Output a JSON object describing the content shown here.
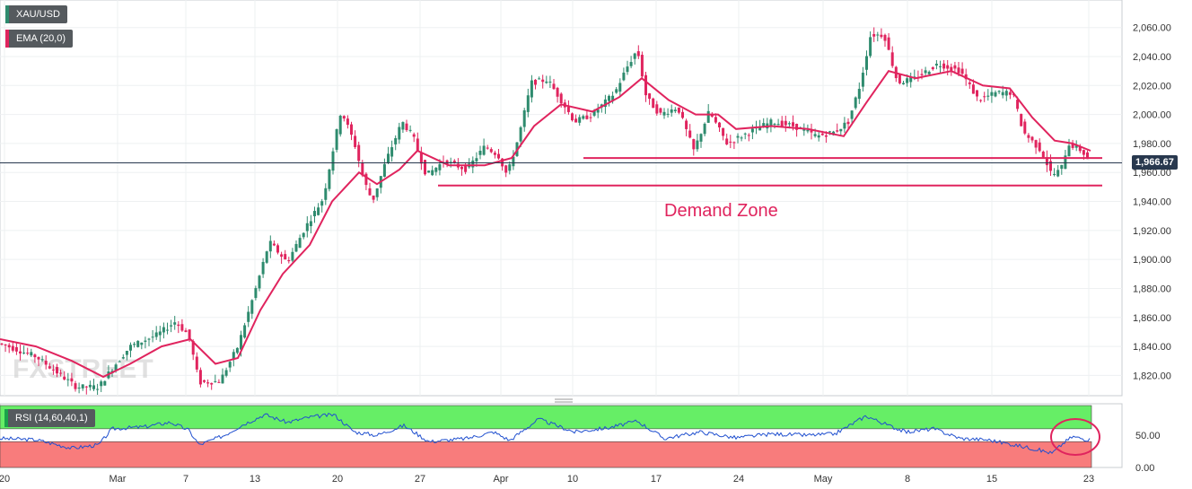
{
  "legend": {
    "symbol": "XAU/USD",
    "ema": "EMA (20,0)",
    "rsi": "RSI (14,60,40,1)"
  },
  "annotations": {
    "demand_zone": "Demand Zone",
    "current_price": "1,966.67"
  },
  "watermark": "FXSTREET",
  "colors": {
    "up_candle": "#2e8b6e",
    "down_candle": "#e0245e",
    "ema": "#e0245e",
    "zone_lines": "#e0245e",
    "rsi_line": "#1f4fcf",
    "rsi_overbought_fill": "#66ee66",
    "rsi_oversold_fill": "#f87c7c",
    "price_line": "#28384e"
  },
  "chart_data": [
    {
      "type": "candlestick",
      "title": "XAU/USD",
      "x_ticks": [
        "20",
        "Mar",
        "7",
        "13",
        "20",
        "27",
        "Apr",
        "10",
        "17",
        "24",
        "May",
        "8",
        "15",
        "23"
      ],
      "y_ticks": [
        "1,820.00",
        "1,840.00",
        "1,860.00",
        "1,880.00",
        "1,900.00",
        "1,920.00",
        "1,940.00",
        "1,960.00",
        "1,980.00",
        "2,000.00",
        "2,020.00",
        "2,040.00",
        "2,060.00"
      ],
      "ylim": [
        1806,
        2079
      ],
      "grid": true,
      "anchors": [
        {
          "x": 0,
          "y": 1842
        },
        {
          "x": 40,
          "y": 1833
        },
        {
          "x": 85,
          "y": 1812
        },
        {
          "x": 110,
          "y": 1812
        },
        {
          "x": 125,
          "y": 1825
        },
        {
          "x": 145,
          "y": 1840
        },
        {
          "x": 175,
          "y": 1848
        },
        {
          "x": 195,
          "y": 1857
        },
        {
          "x": 210,
          "y": 1848
        },
        {
          "x": 222,
          "y": 1815
        },
        {
          "x": 245,
          "y": 1816
        },
        {
          "x": 265,
          "y": 1840
        },
        {
          "x": 285,
          "y": 1880
        },
        {
          "x": 300,
          "y": 1912
        },
        {
          "x": 320,
          "y": 1898
        },
        {
          "x": 340,
          "y": 1922
        },
        {
          "x": 360,
          "y": 1942
        },
        {
          "x": 380,
          "y": 2003
        },
        {
          "x": 395,
          "y": 1980
        },
        {
          "x": 405,
          "y": 1955
        },
        {
          "x": 415,
          "y": 1940
        },
        {
          "x": 430,
          "y": 1968
        },
        {
          "x": 448,
          "y": 1995
        },
        {
          "x": 460,
          "y": 1985
        },
        {
          "x": 475,
          "y": 1958
        },
        {
          "x": 495,
          "y": 1968
        },
        {
          "x": 520,
          "y": 1962
        },
        {
          "x": 540,
          "y": 1978
        },
        {
          "x": 555,
          "y": 1972
        },
        {
          "x": 565,
          "y": 1958
        },
        {
          "x": 578,
          "y": 1985
        },
        {
          "x": 592,
          "y": 2022
        },
        {
          "x": 610,
          "y": 2024
        },
        {
          "x": 625,
          "y": 2010
        },
        {
          "x": 640,
          "y": 1995
        },
        {
          "x": 660,
          "y": 2000
        },
        {
          "x": 685,
          "y": 2015
        },
        {
          "x": 698,
          "y": 2032
        },
        {
          "x": 710,
          "y": 2045
        },
        {
          "x": 720,
          "y": 2012
        },
        {
          "x": 735,
          "y": 2000
        },
        {
          "x": 755,
          "y": 2005
        },
        {
          "x": 773,
          "y": 1975
        },
        {
          "x": 790,
          "y": 2002
        },
        {
          "x": 810,
          "y": 1980
        },
        {
          "x": 835,
          "y": 1988
        },
        {
          "x": 860,
          "y": 1995
        },
        {
          "x": 885,
          "y": 1992
        },
        {
          "x": 910,
          "y": 1985
        },
        {
          "x": 930,
          "y": 1988
        },
        {
          "x": 945,
          "y": 1995
        },
        {
          "x": 958,
          "y": 2020
        },
        {
          "x": 970,
          "y": 2055
        },
        {
          "x": 985,
          "y": 2055
        },
        {
          "x": 1000,
          "y": 2022
        },
        {
          "x": 1020,
          "y": 2025
        },
        {
          "x": 1045,
          "y": 2035
        },
        {
          "x": 1070,
          "y": 2030
        },
        {
          "x": 1090,
          "y": 2010
        },
        {
          "x": 1110,
          "y": 2015
        },
        {
          "x": 1128,
          "y": 2015
        },
        {
          "x": 1140,
          "y": 1988
        },
        {
          "x": 1160,
          "y": 1975
        },
        {
          "x": 1172,
          "y": 1958
        },
        {
          "x": 1182,
          "y": 1962
        },
        {
          "x": 1190,
          "y": 1980
        },
        {
          "x": 1205,
          "y": 1975
        },
        {
          "x": 1215,
          "y": 1966.67
        }
      ],
      "ema_series": [
        {
          "x": 0,
          "y": 1845
        },
        {
          "x": 40,
          "y": 1840
        },
        {
          "x": 80,
          "y": 1830
        },
        {
          "x": 115,
          "y": 1819
        },
        {
          "x": 145,
          "y": 1828
        },
        {
          "x": 180,
          "y": 1840
        },
        {
          "x": 212,
          "y": 1845
        },
        {
          "x": 240,
          "y": 1828
        },
        {
          "x": 265,
          "y": 1832
        },
        {
          "x": 290,
          "y": 1865
        },
        {
          "x": 315,
          "y": 1890
        },
        {
          "x": 345,
          "y": 1910
        },
        {
          "x": 370,
          "y": 1940
        },
        {
          "x": 400,
          "y": 1960
        },
        {
          "x": 420,
          "y": 1952
        },
        {
          "x": 445,
          "y": 1962
        },
        {
          "x": 465,
          "y": 1975
        },
        {
          "x": 500,
          "y": 1965
        },
        {
          "x": 540,
          "y": 1965
        },
        {
          "x": 570,
          "y": 1970
        },
        {
          "x": 595,
          "y": 1992
        },
        {
          "x": 625,
          "y": 2007
        },
        {
          "x": 660,
          "y": 2002
        },
        {
          "x": 690,
          "y": 2012
        },
        {
          "x": 715,
          "y": 2025
        },
        {
          "x": 745,
          "y": 2010
        },
        {
          "x": 775,
          "y": 2000
        },
        {
          "x": 800,
          "y": 2000
        },
        {
          "x": 820,
          "y": 1990
        },
        {
          "x": 860,
          "y": 1992
        },
        {
          "x": 900,
          "y": 1990
        },
        {
          "x": 940,
          "y": 1985
        },
        {
          "x": 965,
          "y": 2008
        },
        {
          "x": 990,
          "y": 2030
        },
        {
          "x": 1020,
          "y": 2025
        },
        {
          "x": 1060,
          "y": 2030
        },
        {
          "x": 1095,
          "y": 2020
        },
        {
          "x": 1125,
          "y": 2018
        },
        {
          "x": 1150,
          "y": 1998
        },
        {
          "x": 1175,
          "y": 1982
        },
        {
          "x": 1195,
          "y": 1980
        },
        {
          "x": 1215,
          "y": 1975
        }
      ],
      "horizontal_lines": [
        {
          "y": 1970,
          "x_start": 650,
          "x_end": 1228
        },
        {
          "y": 1951,
          "x_start": 488,
          "x_end": 1228
        }
      ],
      "current_price": 1966.67
    },
    {
      "type": "line",
      "title": "RSI (14,60,40,1)",
      "y_ticks": [
        "0.00",
        "50.00"
      ],
      "ylim": [
        0,
        96
      ],
      "upper_band": 60,
      "lower_band": 40,
      "values": [
        {
          "x": 0,
          "y": 45
        },
        {
          "x": 40,
          "y": 43
        },
        {
          "x": 80,
          "y": 30
        },
        {
          "x": 110,
          "y": 35
        },
        {
          "x": 125,
          "y": 60
        },
        {
          "x": 160,
          "y": 63
        },
        {
          "x": 190,
          "y": 70
        },
        {
          "x": 210,
          "y": 58
        },
        {
          "x": 222,
          "y": 35
        },
        {
          "x": 250,
          "y": 50
        },
        {
          "x": 270,
          "y": 66
        },
        {
          "x": 295,
          "y": 82
        },
        {
          "x": 320,
          "y": 70
        },
        {
          "x": 345,
          "y": 78
        },
        {
          "x": 372,
          "y": 82
        },
        {
          "x": 395,
          "y": 55
        },
        {
          "x": 420,
          "y": 50
        },
        {
          "x": 450,
          "y": 65
        },
        {
          "x": 478,
          "y": 40
        },
        {
          "x": 520,
          "y": 45
        },
        {
          "x": 550,
          "y": 55
        },
        {
          "x": 568,
          "y": 42
        },
        {
          "x": 600,
          "y": 75
        },
        {
          "x": 640,
          "y": 55
        },
        {
          "x": 680,
          "y": 62
        },
        {
          "x": 710,
          "y": 72
        },
        {
          "x": 740,
          "y": 45
        },
        {
          "x": 780,
          "y": 55
        },
        {
          "x": 820,
          "y": 46
        },
        {
          "x": 860,
          "y": 52
        },
        {
          "x": 900,
          "y": 50
        },
        {
          "x": 930,
          "y": 52
        },
        {
          "x": 965,
          "y": 80
        },
        {
          "x": 990,
          "y": 65
        },
        {
          "x": 1010,
          "y": 55
        },
        {
          "x": 1040,
          "y": 60
        },
        {
          "x": 1070,
          "y": 45
        },
        {
          "x": 1100,
          "y": 43
        },
        {
          "x": 1130,
          "y": 35
        },
        {
          "x": 1155,
          "y": 28
        },
        {
          "x": 1172,
          "y": 22
        },
        {
          "x": 1185,
          "y": 38
        },
        {
          "x": 1195,
          "y": 48
        },
        {
          "x": 1215,
          "y": 42
        }
      ],
      "highlight_marker": "circle"
    }
  ]
}
